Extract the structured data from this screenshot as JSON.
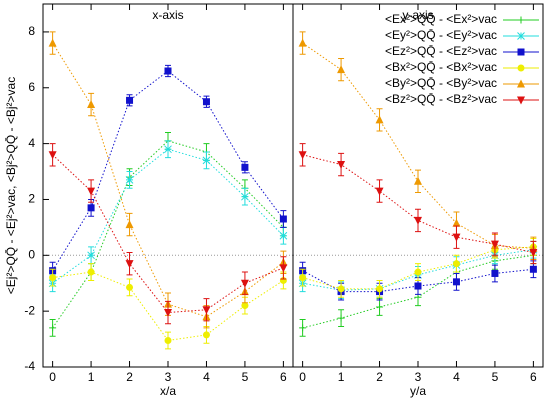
{
  "chart_data": [
    {
      "type": "line",
      "title": "x-axis",
      "x_label": "x/a",
      "y_label": "<Ej²>QQ̄ - <Ej²>vac, <Bj²>QQ̄ - <Bj²>vac",
      "x": [
        0,
        1,
        2,
        3,
        4,
        5,
        6
      ],
      "xlim": [
        -0.25,
        6.25
      ],
      "xticks": [
        0,
        1,
        2,
        3,
        4,
        5,
        6
      ],
      "ylim": [
        -4,
        9
      ],
      "yticks": [
        -4,
        -2,
        0,
        2,
        4,
        6,
        8
      ],
      "series": [
        {
          "color": "#22cc22",
          "marker": "plus",
          "values": [
            -2.6,
            -0.6,
            2.8,
            4.1,
            3.7,
            2.4,
            1.0
          ],
          "errors": [
            0.3,
            0.3,
            0.3,
            0.3,
            0.3,
            0.3,
            0.3
          ]
        },
        {
          "color": "#22dddd",
          "marker": "star",
          "values": [
            -1.0,
            0.0,
            2.7,
            3.8,
            3.4,
            2.1,
            0.7
          ],
          "errors": [
            0.3,
            0.3,
            0.3,
            0.3,
            0.3,
            0.3,
            0.3
          ]
        },
        {
          "color": "#1111cc",
          "marker": "square",
          "values": [
            -0.55,
            1.7,
            5.55,
            6.6,
            5.5,
            3.15,
            1.3
          ],
          "errors": [
            0.3,
            0.3,
            0.2,
            0.2,
            0.2,
            0.2,
            0.3
          ]
        },
        {
          "color": "#eeee00",
          "marker": "circle",
          "values": [
            -0.8,
            -0.6,
            -1.15,
            -3.05,
            -2.85,
            -1.8,
            -0.9
          ],
          "errors": [
            0.3,
            0.3,
            0.3,
            0.3,
            0.3,
            0.3,
            0.3
          ]
        },
        {
          "color": "#ee9900",
          "marker": "triangle",
          "values": [
            7.6,
            5.4,
            1.1,
            -1.75,
            -2.2,
            -1.3,
            -0.25
          ],
          "errors": [
            0.4,
            0.4,
            0.4,
            0.4,
            0.4,
            0.4,
            0.4
          ]
        },
        {
          "color": "#dd1111",
          "marker": "triangle-down",
          "values": [
            3.6,
            2.3,
            -0.3,
            -2.05,
            -1.95,
            -1.0,
            -0.45
          ],
          "errors": [
            0.4,
            0.4,
            0.4,
            0.4,
            0.4,
            0.4,
            0.4
          ]
        }
      ]
    },
    {
      "type": "line",
      "title": "y-axis",
      "x_label": "y/a",
      "legend": "upper right",
      "x": [
        0,
        1,
        2,
        3,
        4,
        5,
        6
      ],
      "xlim": [
        -0.25,
        6.25
      ],
      "xticks": [
        0,
        1,
        2,
        3,
        4,
        5,
        6
      ],
      "ylim": [
        -4,
        9
      ],
      "series": [
        {
          "name": "<Ex²>QQ̄ - <Ex²>vac",
          "color": "#22cc22",
          "marker": "plus",
          "values": [
            -2.6,
            -2.25,
            -1.85,
            -1.5,
            -0.6,
            -0.2,
            0.0
          ],
          "errors": [
            0.3,
            0.3,
            0.3,
            0.3,
            0.3,
            0.3,
            0.3
          ]
        },
        {
          "name": "<Ey²>QQ̄ - <Ey²>vac",
          "color": "#22dddd",
          "marker": "star",
          "values": [
            -1.0,
            -1.25,
            -1.2,
            -0.7,
            -0.35,
            0.0,
            0.2
          ],
          "errors": [
            0.3,
            0.3,
            0.3,
            0.3,
            0.3,
            0.3,
            0.3
          ]
        },
        {
          "name": "<Ez²>QQ̄ - <Ez²>vac",
          "color": "#1111cc",
          "marker": "square",
          "values": [
            -0.55,
            -1.3,
            -1.3,
            -1.1,
            -0.95,
            -0.65,
            -0.5
          ],
          "errors": [
            0.3,
            0.3,
            0.3,
            0.3,
            0.3,
            0.3,
            0.3
          ]
        },
        {
          "name": "<Bx²>QQ̄ - <Bx²>vac",
          "color": "#eeee00",
          "marker": "circle",
          "values": [
            -0.8,
            -1.2,
            -1.2,
            -0.6,
            -0.3,
            0.2,
            0.3
          ],
          "errors": [
            0.3,
            0.3,
            0.3,
            0.3,
            0.3,
            0.3,
            0.3
          ]
        },
        {
          "name": "<By²>QQ̄ - <By²>vac",
          "color": "#ee9900",
          "marker": "triangle",
          "values": [
            7.6,
            6.65,
            4.85,
            2.65,
            1.15,
            0.35,
            0.25
          ],
          "errors": [
            0.4,
            0.4,
            0.4,
            0.4,
            0.4,
            0.4,
            0.4
          ]
        },
        {
          "name": "<Bz²>QQ̄ - <Bz²>vac",
          "color": "#dd1111",
          "marker": "triangle-down",
          "values": [
            3.6,
            3.25,
            2.3,
            1.25,
            0.65,
            0.4,
            0.1
          ],
          "errors": [
            0.4,
            0.4,
            0.4,
            0.4,
            0.4,
            0.4,
            0.4
          ]
        }
      ]
    }
  ]
}
